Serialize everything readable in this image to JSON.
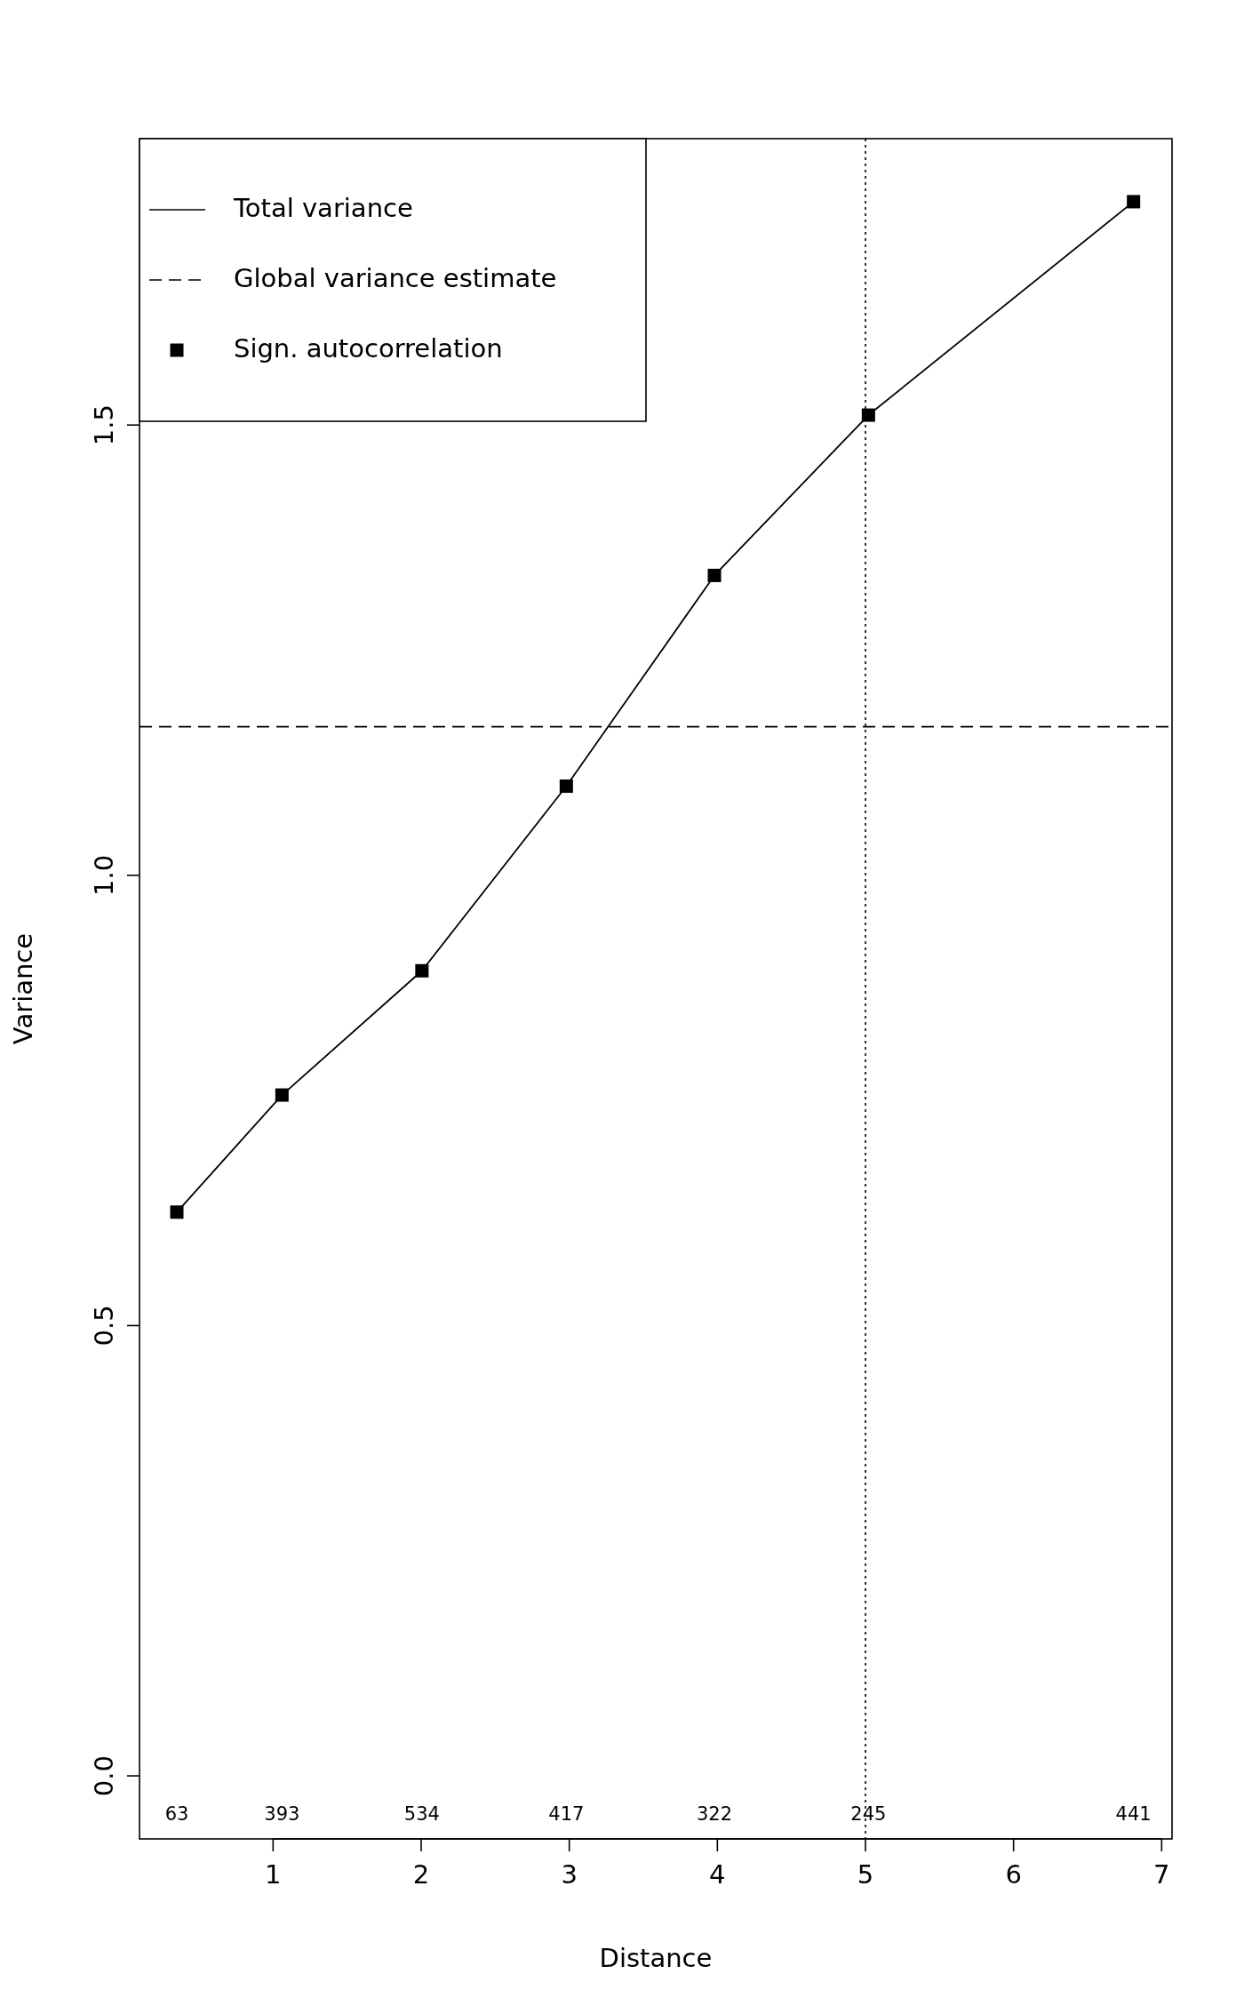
{
  "chart_data": {
    "type": "line",
    "xlabel": "Distance",
    "ylabel": "Variance",
    "xlim": [
      0.098,
      7.07
    ],
    "ylim": [
      -0.07,
      1.818
    ],
    "xticks": [
      1,
      2,
      3,
      4,
      5,
      6,
      7
    ],
    "yticks": [
      {
        "value": 0,
        "label": "0.0"
      },
      0.5,
      {
        "value": 1,
        "label": "1.0"
      },
      1.5
    ],
    "legend": "top left",
    "series": [
      {
        "name": "Total variance",
        "color": "#000000",
        "marker": "none",
        "line_style": "solid",
        "x": [
          0.35,
          1.06,
          2.005,
          2.98,
          3.98,
          5.02,
          6.81
        ],
        "values": [
          0.626,
          0.756,
          0.894,
          1.099,
          1.333,
          1.511,
          1.748
        ]
      },
      {
        "name": "Sign. autocorrelation",
        "type": "scatter",
        "color": "#000000",
        "marker": "square",
        "x": [
          0.35,
          1.06,
          2.005,
          2.98,
          3.98,
          5.02,
          6.81
        ],
        "values": [
          0.626,
          0.756,
          0.894,
          1.099,
          1.333,
          1.511,
          1.748
        ]
      }
    ],
    "ref_lines": [
      {
        "axis": "y",
        "value": 1.165,
        "label": "Global variance estimate",
        "line_style": "dashed",
        "color": "#000000"
      },
      {
        "axis": "x",
        "value": 5,
        "line_style": "dotted",
        "color": "#000000"
      }
    ],
    "annotations": [
      "63",
      "393",
      "534",
      "417",
      "322",
      "245",
      "441"
    ]
  }
}
